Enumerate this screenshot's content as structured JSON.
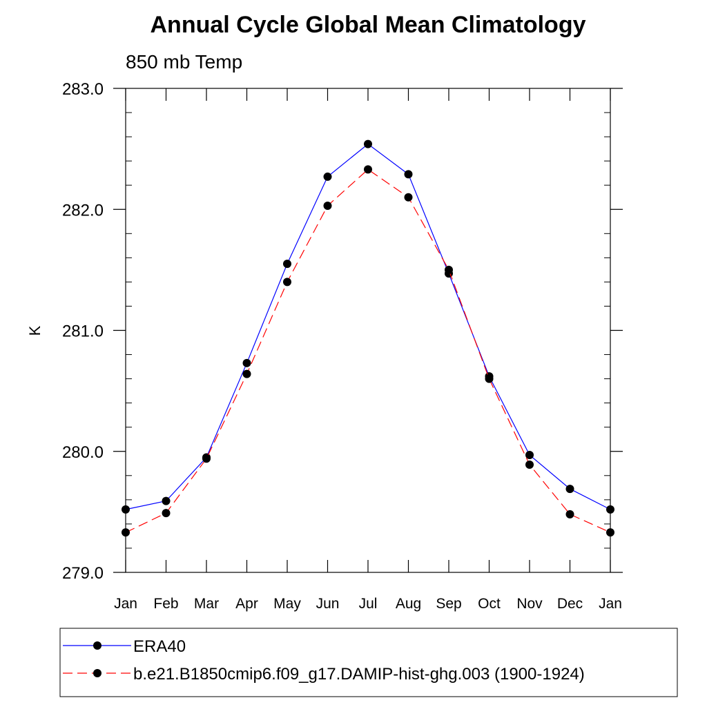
{
  "chart_data": {
    "type": "line",
    "title": "Annual Cycle Global Mean Climatology",
    "subtitle": "850 mb Temp",
    "xlabel": "",
    "ylabel": "K",
    "categories": [
      "Jan",
      "Feb",
      "Mar",
      "Apr",
      "May",
      "Jun",
      "Jul",
      "Aug",
      "Sep",
      "Oct",
      "Nov",
      "Dec",
      "Jan"
    ],
    "ylim": [
      279.0,
      283.0
    ],
    "yticks": [
      "279.0",
      "280.0",
      "281.0",
      "282.0",
      "283.0"
    ],
    "grid": false,
    "legend_position": "bottom",
    "series": [
      {
        "name": "ERA40",
        "color": "#0000ff",
        "line_style": "solid",
        "values": [
          279.52,
          279.59,
          279.95,
          280.73,
          281.55,
          282.27,
          282.54,
          282.29,
          281.47,
          280.62,
          279.97,
          279.69,
          279.52
        ]
      },
      {
        "name": "b.e21.B1850cmip6.f09_g17.DAMIP-hist-ghg.003 (1900-1924)",
        "color": "#ff0000",
        "line_style": "dashed",
        "values": [
          279.33,
          279.49,
          279.94,
          280.64,
          281.4,
          282.03,
          282.33,
          282.1,
          281.5,
          280.6,
          279.89,
          279.48,
          279.33
        ]
      }
    ]
  }
}
